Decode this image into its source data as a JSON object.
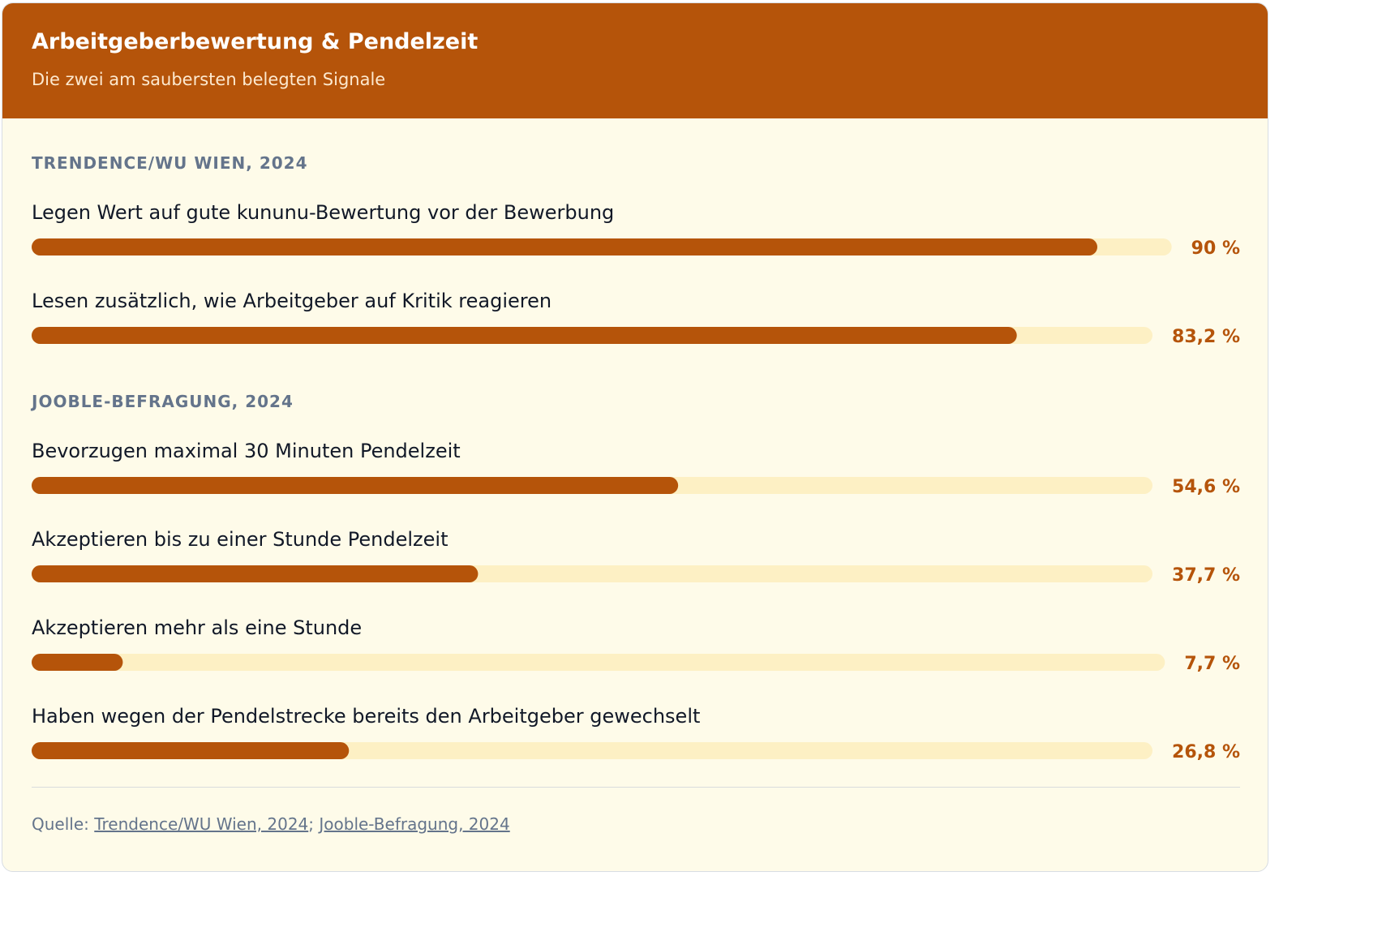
{
  "header": {
    "title": "Arbeitgeberbewertung & Pendelzeit",
    "subtitle": "Die zwei am saubersten belegten Signale"
  },
  "colors": {
    "accent": "#b5540a",
    "track": "#fdf0c4",
    "background": "#fefbe9"
  },
  "chart_data": {
    "type": "bar",
    "orientation": "horizontal",
    "title": "Arbeitgeberbewertung & Pendelzeit",
    "subtitle": "Die zwei am saubersten belegten Signale",
    "unit": "%",
    "xlim": [
      0,
      100
    ],
    "grid": false,
    "legend": "none",
    "sections": [
      {
        "label": "TRENDENCE/WU WIEN, 2024",
        "items": [
          {
            "label": "Legen Wert auf gute kununu-Bewertung vor der Bewerbung",
            "value": 90,
            "display": "90 %"
          },
          {
            "label": "Lesen zusätzlich, wie Arbeitgeber auf Kritik reagieren",
            "value": 83.2,
            "display": "83,2 %"
          }
        ]
      },
      {
        "label": "JOOBLE-BEFRAGUNG, 2024",
        "items": [
          {
            "label": "Bevorzugen maximal 30 Minuten Pendelzeit",
            "value": 54.6,
            "display": "54,6 %"
          },
          {
            "label": "Akzeptieren bis zu einer Stunde Pendelzeit",
            "value": 37.7,
            "display": "37,7 %"
          },
          {
            "label": "Akzeptieren mehr als eine Stunde",
            "value": 7.7,
            "display": "7,7 %"
          },
          {
            "label": "Haben wegen der Pendelstrecke bereits den Arbeitgeber gewechselt",
            "value": 26.8,
            "display": "26,8 %"
          }
        ]
      }
    ]
  },
  "footer": {
    "prefix": "Quelle: ",
    "separator": "; ",
    "sources": [
      "Trendence/WU Wien, 2024",
      "Jooble-Befragung, 2024"
    ]
  }
}
